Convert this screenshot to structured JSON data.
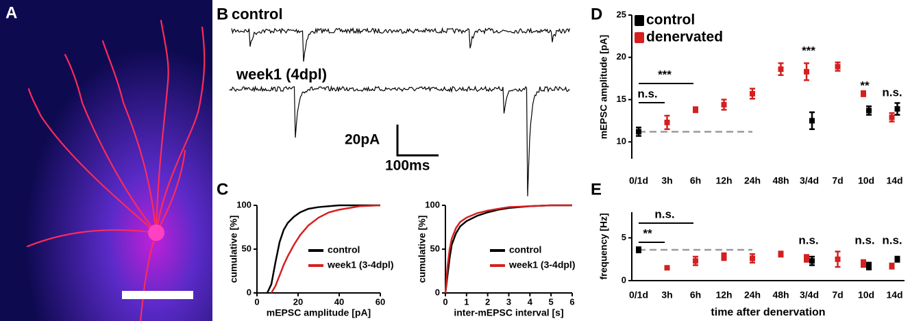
{
  "panel_labels": [
    "A",
    "B",
    "C",
    "D",
    "E"
  ],
  "traces": {
    "labels": [
      "control",
      "week1 (4dpl)"
    ],
    "scale_bar": [
      "20pA",
      "100ms"
    ]
  },
  "chart_data": [
    {
      "type": "line",
      "xlabel": "mEPSC amplitude [pA]",
      "ylabel": "cumulative [%]",
      "xlim": [
        0,
        60
      ],
      "xticks": [
        0,
        20,
        40,
        60
      ],
      "ylim": [
        0,
        100
      ],
      "yticks": [
        0,
        50,
        100
      ],
      "series": [
        {
          "name": "control",
          "color": "#000000",
          "x": [
            5,
            7,
            9,
            11,
            13,
            15,
            18,
            21,
            25,
            30,
            35,
            40,
            50,
            60
          ],
          "values": [
            0,
            10,
            35,
            58,
            72,
            80,
            87,
            92,
            96,
            98,
            99,
            100,
            100,
            100
          ]
        },
        {
          "name": "week1 (3-4dpl)",
          "color": "#d42020",
          "x": [
            7,
            9,
            11,
            13,
            15,
            18,
            21,
            25,
            30,
            35,
            40,
            45,
            50,
            60
          ],
          "values": [
            0,
            8,
            20,
            32,
            42,
            55,
            66,
            77,
            86,
            92,
            95,
            97,
            99,
            100
          ]
        }
      ]
    },
    {
      "type": "line",
      "xlabel": "inter-mEPSC interval [s]",
      "ylabel": "cumulative [%]",
      "xlim": [
        0,
        6
      ],
      "xticks": [
        0,
        1,
        2,
        3,
        4,
        5,
        6
      ],
      "ylim": [
        0,
        100
      ],
      "yticks": [
        0,
        50,
        100
      ],
      "series": [
        {
          "name": "control",
          "color": "#000000",
          "x": [
            0,
            0.1,
            0.2,
            0.3,
            0.5,
            0.7,
            1,
            1.5,
            2,
            2.5,
            3,
            4,
            5,
            6
          ],
          "values": [
            0,
            20,
            40,
            55,
            68,
            76,
            82,
            88,
            92,
            95,
            97,
            99,
            100,
            100
          ]
        },
        {
          "name": "week1 (3-4dpl)",
          "color": "#d42020",
          "x": [
            0,
            0.1,
            0.2,
            0.3,
            0.5,
            0.7,
            1,
            1.5,
            2,
            2.5,
            3,
            4,
            5,
            6
          ],
          "values": [
            0,
            30,
            50,
            62,
            74,
            81,
            86,
            91,
            94,
            96,
            98,
            99,
            100,
            100
          ]
        }
      ]
    },
    {
      "type": "errorbar",
      "ylabel": "mEPSC amplitude [pA]",
      "categories": [
        "0/1d",
        "3h",
        "6h",
        "12h",
        "24h",
        "48h",
        "3/4d",
        "7d",
        "10d",
        "14d"
      ],
      "ylim": [
        8,
        25
      ],
      "yticks": [
        10,
        15,
        20,
        25
      ],
      "series": [
        {
          "name": "control",
          "color": "#000000",
          "values": [
            11.2,
            null,
            null,
            null,
            null,
            null,
            12.5,
            null,
            13.7,
            13.9
          ],
          "errors": [
            0.5,
            null,
            null,
            null,
            null,
            null,
            1.0,
            null,
            0.5,
            0.7
          ]
        },
        {
          "name": "denervated",
          "color": "#d42020",
          "values": [
            null,
            12.3,
            13.8,
            14.4,
            15.7,
            18.6,
            18.3,
            18.9,
            15.7,
            12.9
          ],
          "errors": [
            null,
            0.8,
            0.3,
            0.6,
            0.6,
            0.7,
            1.0,
            0.5,
            0.3,
            0.5
          ]
        }
      ],
      "annotations": [
        "***",
        "n.s.",
        "***",
        "**",
        "n.s."
      ]
    },
    {
      "type": "errorbar",
      "ylabel": "frequency [Hz]",
      "xlabel": "time after denervation",
      "categories": [
        "0/1d",
        "3h",
        "6h",
        "12h",
        "24h",
        "48h",
        "3/4d",
        "7d",
        "10d",
        "14d"
      ],
      "ylim": [
        0,
        8
      ],
      "yticks": [
        0,
        5
      ],
      "series": [
        {
          "name": "control",
          "color": "#000000",
          "values": [
            3.6,
            null,
            null,
            null,
            null,
            null,
            2.3,
            null,
            1.7,
            2.5
          ],
          "errors": [
            0.3,
            null,
            null,
            null,
            null,
            null,
            0.5,
            null,
            0.4,
            0.3
          ]
        },
        {
          "name": "denervated",
          "color": "#d42020",
          "values": [
            null,
            1.5,
            2.3,
            2.8,
            2.6,
            3.1,
            2.6,
            2.5,
            2.0,
            1.7
          ],
          "errors": [
            null,
            0.1,
            0.5,
            0.4,
            0.5,
            0.3,
            0.4,
            0.9,
            0.4,
            0.3
          ]
        }
      ],
      "annotations": [
        "n.s.",
        "**",
        "n.s.",
        "n.s.",
        "n.s."
      ]
    }
  ]
}
